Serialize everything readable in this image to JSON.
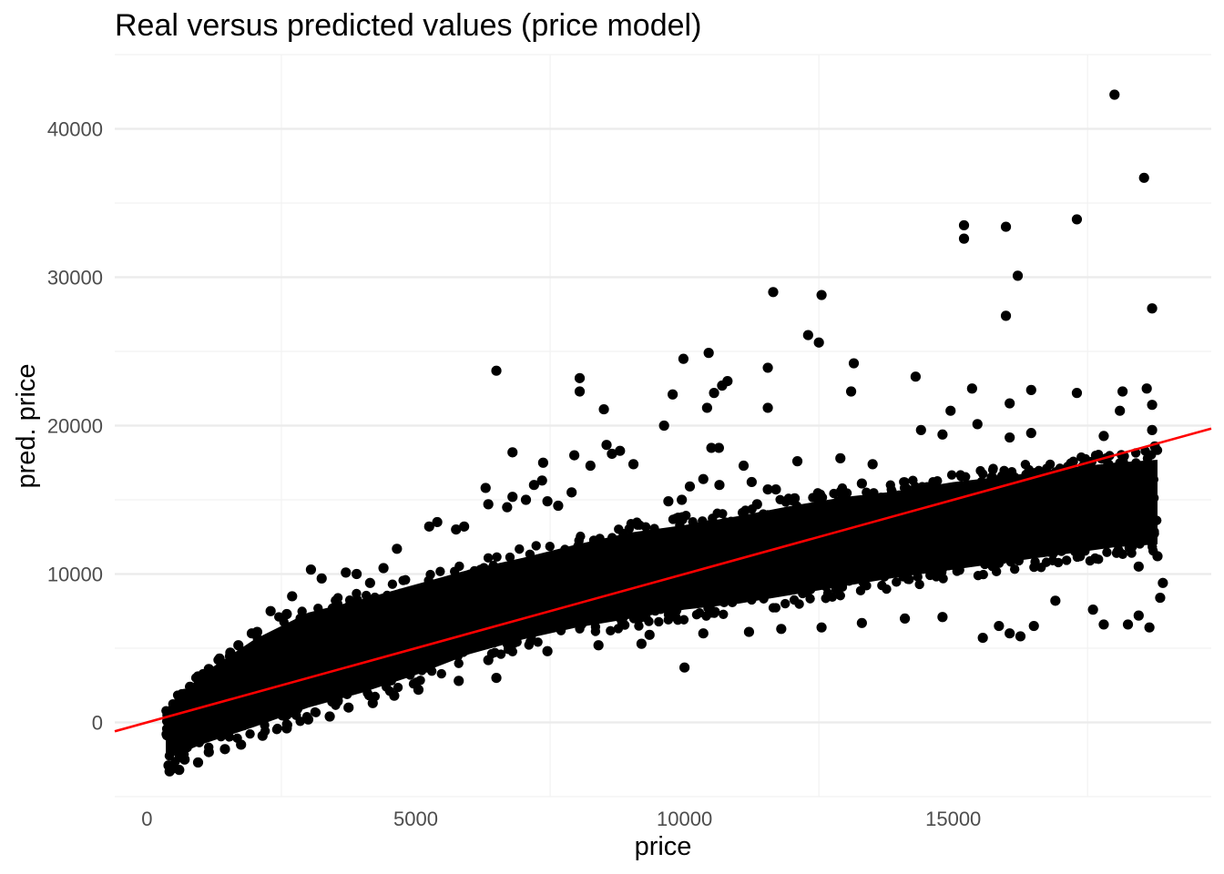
{
  "chart_data": {
    "type": "scatter",
    "title": "Real versus predicted values (price model)",
    "xlabel": "price",
    "ylabel": "pred. price",
    "xlim": [
      -600,
      19800
    ],
    "ylim": [
      -5000,
      45000
    ],
    "x_ticks": [
      0,
      5000,
      10000,
      15000
    ],
    "x_tick_labels": [
      "0",
      "5000",
      "10000",
      "15000"
    ],
    "y_ticks": [
      0,
      10000,
      20000,
      30000,
      40000
    ],
    "y_tick_labels": [
      "0",
      "10000",
      "20000",
      "30000",
      "40000"
    ],
    "grid": true,
    "point_color": "#000000",
    "reference_line": {
      "type": "identity",
      "slope": 1,
      "intercept": 0,
      "color": "#ff0000"
    },
    "points": [
      [
        18000,
        42300
      ],
      [
        18550,
        36700
      ],
      [
        17300,
        33900
      ],
      [
        15200,
        33500
      ],
      [
        15200,
        32600
      ],
      [
        15980,
        33400
      ],
      [
        16200,
        30100
      ],
      [
        15980,
        27400
      ],
      [
        18700,
        27900
      ],
      [
        11650,
        29000
      ],
      [
        12550,
        28800
      ],
      [
        12300,
        26100
      ],
      [
        12500,
        25600
      ],
      [
        6500,
        23700
      ],
      [
        8050,
        23200
      ],
      [
        8050,
        22300
      ],
      [
        9980,
        24500
      ],
      [
        10450,
        24900
      ],
      [
        13150,
        24200
      ],
      [
        11550,
        23900
      ],
      [
        14300,
        23300
      ],
      [
        10800,
        23000
      ],
      [
        10700,
        22700
      ],
      [
        10550,
        22200
      ],
      [
        9780,
        22100
      ],
      [
        10420,
        21200
      ],
      [
        11550,
        21200
      ],
      [
        8500,
        21100
      ],
      [
        13100,
        22300
      ],
      [
        15350,
        22500
      ],
      [
        16450,
        22400
      ],
      [
        17300,
        22200
      ],
      [
        16050,
        21500
      ],
      [
        18150,
        22300
      ],
      [
        18600,
        22500
      ],
      [
        18700,
        21400
      ],
      [
        9620,
        20000
      ],
      [
        14950,
        21000
      ],
      [
        15450,
        20100
      ],
      [
        18100,
        21000
      ],
      [
        6800,
        18200
      ],
      [
        7370,
        17500
      ],
      [
        8550,
        18700
      ],
      [
        8800,
        18300
      ],
      [
        8650,
        18100
      ],
      [
        9050,
        17400
      ],
      [
        7950,
        18000
      ],
      [
        8250,
        17300
      ],
      [
        10500,
        18500
      ],
      [
        10640,
        18500
      ],
      [
        11100,
        17300
      ],
      [
        12100,
        17600
      ],
      [
        12900,
        17800
      ],
      [
        13500,
        17400
      ],
      [
        14400,
        19700
      ],
      [
        14800,
        19400
      ],
      [
        16050,
        19200
      ],
      [
        16450,
        19500
      ],
      [
        17800,
        19300
      ],
      [
        18700,
        19700
      ],
      [
        18750,
        18600
      ],
      [
        10350,
        16400
      ],
      [
        11250,
        16200
      ],
      [
        11550,
        15700
      ],
      [
        11700,
        15700
      ],
      [
        9700,
        14900
      ],
      [
        9950,
        15000
      ],
      [
        10100,
        15900
      ],
      [
        10650,
        16000
      ],
      [
        11350,
        14700
      ],
      [
        12050,
        15100
      ],
      [
        12500,
        15000
      ],
      [
        13300,
        16100
      ],
      [
        7900,
        15500
      ],
      [
        7200,
        16000
      ],
      [
        6300,
        15800
      ],
      [
        6800,
        15200
      ],
      [
        7350,
        16300
      ],
      [
        6350,
        14700
      ],
      [
        6700,
        14500
      ],
      [
        7050,
        15000
      ],
      [
        7450,
        14900
      ],
      [
        7650,
        14600
      ],
      [
        5250,
        13200
      ],
      [
        5400,
        13500
      ],
      [
        5750,
        13000
      ],
      [
        5900,
        13200
      ],
      [
        4650,
        11700
      ],
      [
        4400,
        10400
      ],
      [
        3050,
        10300
      ],
      [
        3250,
        9700
      ],
      [
        3700,
        10100
      ],
      [
        3900,
        10000
      ],
      [
        4150,
        9400
      ],
      [
        2700,
        8500
      ],
      [
        2300,
        7500
      ],
      [
        2600,
        7300
      ],
      [
        2900,
        7100
      ],
      [
        2050,
        6100
      ],
      [
        1950,
        6000
      ],
      [
        1700,
        5200
      ],
      [
        1550,
        4700
      ],
      [
        1350,
        4300
      ],
      [
        1150,
        3600
      ],
      [
        950,
        3100
      ],
      [
        800,
        2400
      ],
      [
        650,
        1900
      ],
      [
        540,
        1200
      ],
      [
        450,
        800
      ],
      [
        380,
        500
      ],
      [
        400,
        -2900
      ],
      [
        420,
        -3300
      ],
      [
        480,
        -3100
      ],
      [
        600,
        -3200
      ],
      [
        700,
        -2500
      ],
      [
        950,
        -2700
      ],
      [
        1150,
        -2000
      ],
      [
        1450,
        -1800
      ],
      [
        1750,
        -1500
      ],
      [
        2150,
        -900
      ],
      [
        2600,
        -400
      ],
      [
        3000,
        200
      ],
      [
        3400,
        400
      ],
      [
        3750,
        1000
      ],
      [
        4200,
        1300
      ],
      [
        4600,
        1800
      ],
      [
        5050,
        2200
      ],
      [
        5800,
        2800
      ],
      [
        6500,
        3000
      ],
      [
        6350,
        4200
      ],
      [
        7450,
        4800
      ],
      [
        8400,
        5200
      ],
      [
        9200,
        5300
      ],
      [
        9350,
        5900
      ],
      [
        10000,
        3700
      ],
      [
        10350,
        6000
      ],
      [
        11200,
        6100
      ],
      [
        11800,
        6300
      ],
      [
        12550,
        6400
      ],
      [
        13300,
        6700
      ],
      [
        14100,
        7000
      ],
      [
        14800,
        7100
      ],
      [
        15550,
        5700
      ],
      [
        15850,
        6500
      ],
      [
        16050,
        6000
      ],
      [
        16250,
        5800
      ],
      [
        16500,
        6500
      ],
      [
        16900,
        8200
      ],
      [
        17600,
        7600
      ],
      [
        17800,
        6600
      ],
      [
        18250,
        6600
      ],
      [
        18450,
        7200
      ],
      [
        18650,
        6400
      ],
      [
        18850,
        8400
      ],
      [
        18900,
        9400
      ],
      [
        18450,
        10500
      ],
      [
        18800,
        11200
      ],
      [
        18400,
        12500
      ],
      [
        17800,
        14000
      ],
      [
        17100,
        14200
      ],
      [
        16400,
        13500
      ],
      [
        15600,
        12900
      ],
      [
        14900,
        12400
      ],
      [
        14200,
        12000
      ],
      [
        13500,
        11800
      ],
      [
        12800,
        11300
      ],
      [
        12100,
        10900
      ],
      [
        11400,
        10400
      ],
      [
        10700,
        10100
      ],
      [
        10000,
        9600
      ],
      [
        9300,
        9200
      ],
      [
        8600,
        8800
      ],
      [
        7900,
        8300
      ],
      [
        7200,
        7800
      ],
      [
        6500,
        7300
      ],
      [
        5800,
        6700
      ],
      [
        5100,
        6100
      ],
      [
        4400,
        5400
      ],
      [
        3700,
        4600
      ],
      [
        3000,
        3800
      ],
      [
        2300,
        3000
      ],
      [
        1600,
        2000
      ],
      [
        900,
        900
      ]
    ],
    "density_band": {
      "note": "dense overlapping cloud of points",
      "x": [
        350,
        1000,
        2000,
        3000,
        4000,
        5000,
        6000,
        7000,
        8000,
        9000,
        10000,
        11000,
        12000,
        13000,
        14000,
        15000,
        16000,
        17000,
        18000,
        18800
      ],
      "y_low": [
        -2500,
        -1500,
        -300,
        1000,
        2000,
        3200,
        4600,
        5600,
        6400,
        7000,
        7600,
        8000,
        8600,
        9200,
        9800,
        10300,
        10800,
        11300,
        11800,
        12000
      ],
      "y_high": [
        700,
        3200,
        5600,
        7400,
        8300,
        9300,
        10300,
        11100,
        12000,
        12800,
        13300,
        13900,
        14600,
        15200,
        15600,
        16200,
        16600,
        17100,
        17500,
        17700
      ]
    }
  }
}
